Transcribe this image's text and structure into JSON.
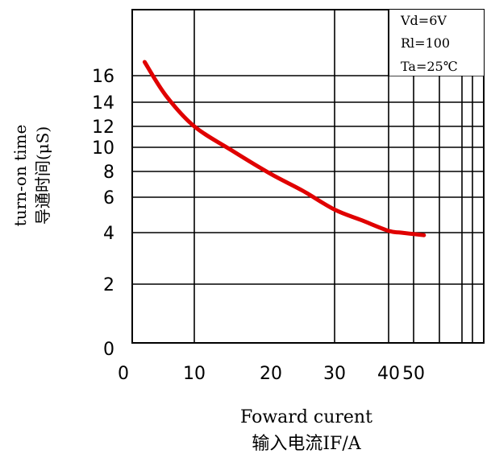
{
  "chart_data": {
    "type": "line",
    "x_axis": {
      "label_en": "Foward curent",
      "label_cn": "输入电流IF/A",
      "tick_labels": [
        "0",
        "10",
        "20",
        "30",
        "40",
        "50"
      ]
    },
    "y_axis": {
      "label_en": "turn-on time",
      "label_cn": "导通时间(μS)",
      "tick_labels": [
        "0",
        "2",
        "4",
        "6",
        "8",
        "10",
        "12",
        "14",
        "16"
      ]
    },
    "annotations": [
      "Vd=6V",
      "Rl=100",
      "Ta=25℃"
    ],
    "grid": true,
    "series": [
      {
        "color": "#e00000",
        "points": [
          {
            "x": 3,
            "y": 17.0
          },
          {
            "x": 6,
            "y": 14.5
          },
          {
            "x": 10,
            "y": 12.0
          },
          {
            "x": 15,
            "y": 9.7
          },
          {
            "x": 20,
            "y": 7.8
          },
          {
            "x": 25,
            "y": 6.5
          },
          {
            "x": 30,
            "y": 5.3
          },
          {
            "x": 35,
            "y": 4.7
          },
          {
            "x": 40,
            "y": 4.1
          },
          {
            "x": 45,
            "y": 4.0
          },
          {
            "x": 52,
            "y": 3.9
          }
        ]
      }
    ]
  }
}
